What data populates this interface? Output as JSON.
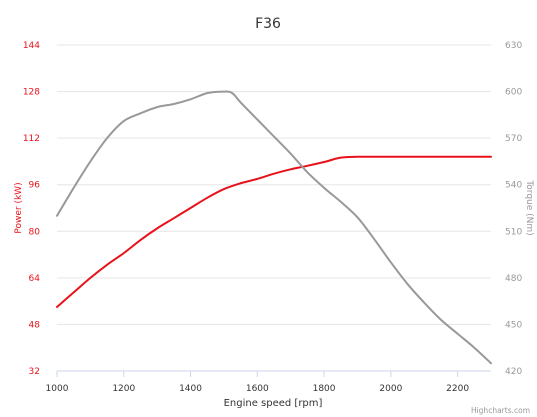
{
  "chart_data": {
    "type": "line",
    "title": "F36",
    "xlabel": "Engine speed [rpm]",
    "xlim": [
      1000,
      2300
    ],
    "x_ticks": [
      1000,
      1200,
      1400,
      1600,
      1800,
      2000,
      2200
    ],
    "y_left": {
      "label": "Power (kW)",
      "lim": [
        32,
        144
      ],
      "ticks": [
        32,
        48,
        64,
        80,
        96,
        112,
        128,
        144
      ],
      "color": "#e8121b"
    },
    "y_right": {
      "label": "Torque (Nm)",
      "lim": [
        420,
        630
      ],
      "ticks": [
        420,
        450,
        480,
        510,
        540,
        570,
        600,
        630
      ],
      "color": "#999999"
    },
    "series": [
      {
        "name": "Power",
        "axis": "left",
        "color": "#e8121b",
        "x": [
          1000,
          1050,
          1100,
          1150,
          1200,
          1250,
          1300,
          1350,
          1400,
          1450,
          1500,
          1550,
          1600,
          1650,
          1700,
          1750,
          1800,
          1850,
          1900,
          2000,
          2100,
          2200,
          2300
        ],
        "values": [
          54,
          59,
          64,
          68.5,
          72.5,
          77,
          81,
          84.5,
          88,
          91.5,
          94.5,
          96.5,
          98,
          99.8,
          101.3,
          102.5,
          103.8,
          105.3,
          105.6,
          105.6,
          105.6,
          105.6,
          105.6
        ]
      },
      {
        "name": "Torque",
        "axis": "right",
        "color": "#999999",
        "x": [
          1000,
          1050,
          1100,
          1150,
          1200,
          1250,
          1300,
          1350,
          1400,
          1450,
          1500,
          1525,
          1550,
          1600,
          1650,
          1700,
          1750,
          1800,
          1850,
          1900,
          1950,
          2000,
          2050,
          2100,
          2150,
          2200,
          2250,
          2300
        ],
        "values": [
          520,
          538,
          555,
          570,
          581,
          586,
          590,
          592,
          595,
          599,
          600,
          599,
          593,
          582,
          571,
          560,
          548,
          538,
          529,
          519,
          505,
          490,
          476,
          464,
          453,
          444,
          435,
          425
        ]
      }
    ],
    "credits": "Highcharts.com"
  }
}
